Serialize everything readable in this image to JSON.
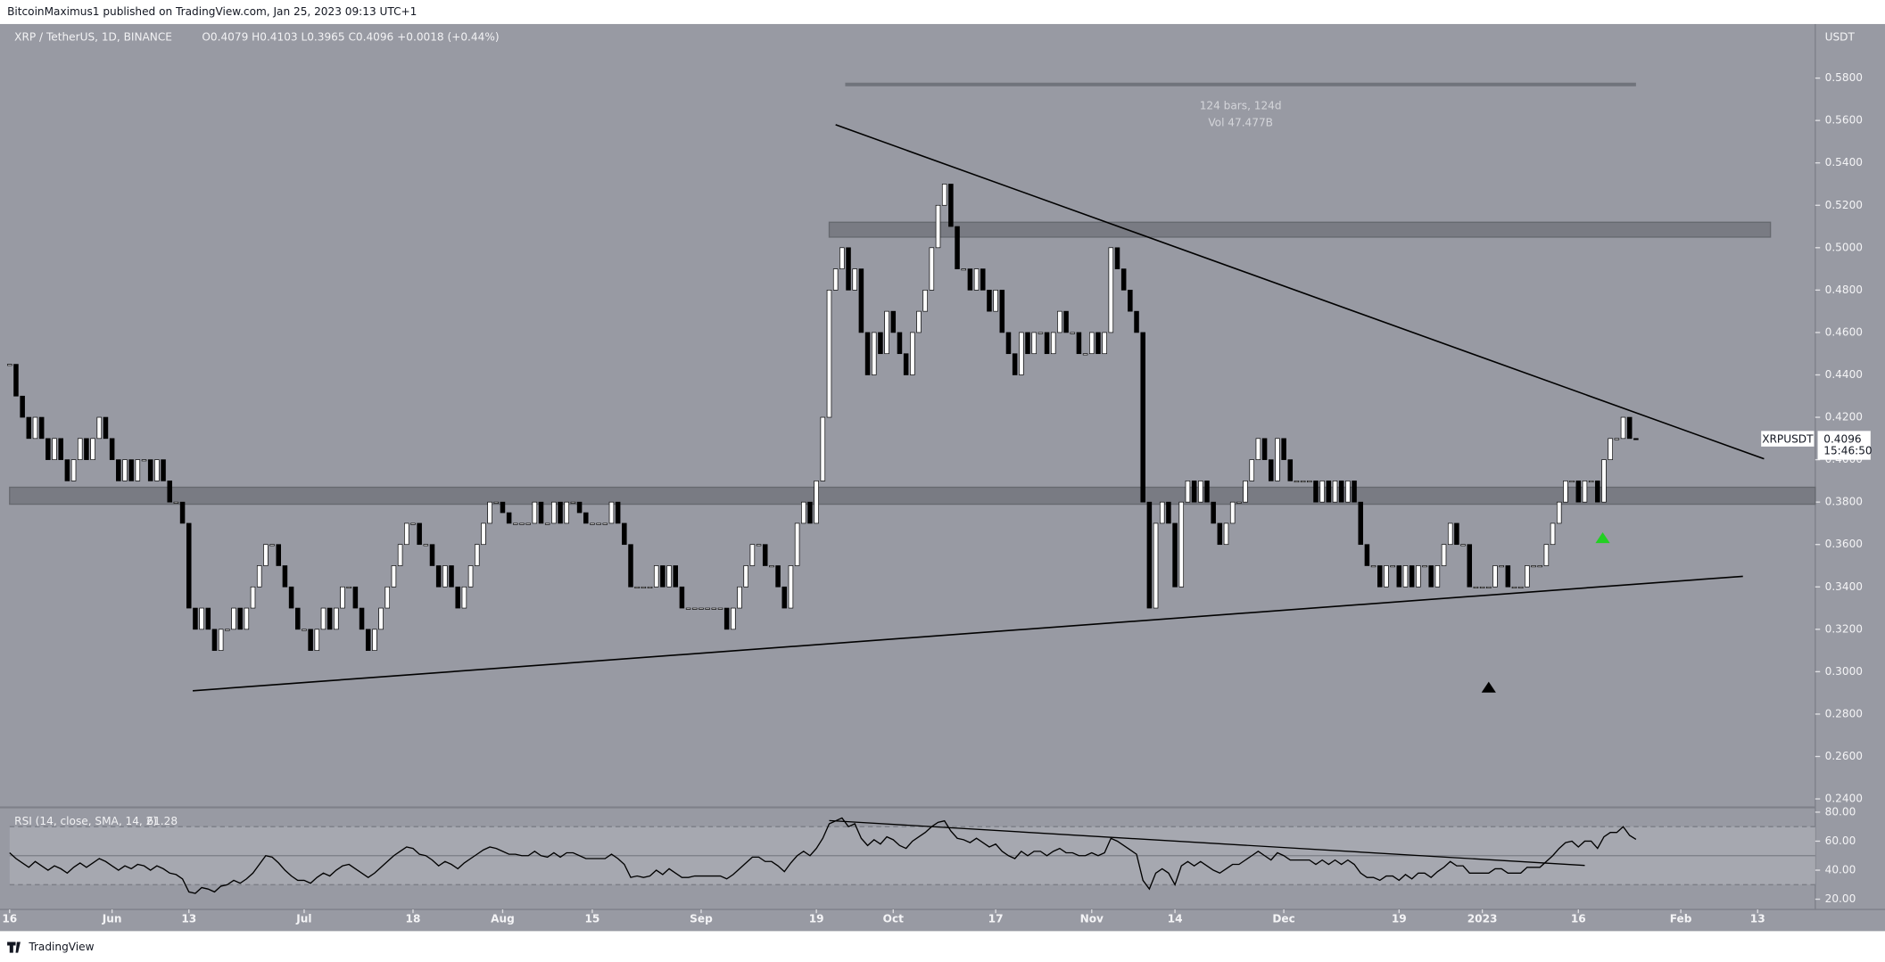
{
  "header": {
    "publisher": "BitcoinMaximus1 published on TradingView.com, Jan 25, 2023 09:13 UTC+1"
  },
  "footer": {
    "brand": "TradingView"
  },
  "chart_data": [
    {
      "type": "candlestick",
      "title": "XRP / TetherUS, 1D, BINANCE",
      "ohlc_text": "O0.4079 H0.4103 L0.3965 C0.4096 +0.0018 (+0.44%)",
      "y_unit": "USDT",
      "symbol_label": "XRPUSDT",
      "last_price_label": "0.4096",
      "countdown": "15:46:50",
      "up_color": "#ffffff",
      "down_color": "#000000",
      "xlim": [
        0,
        282
      ],
      "xticks": [
        {
          "value": 0,
          "label": "16"
        },
        {
          "value": 16,
          "label": "Jun"
        },
        {
          "value": 28,
          "label": "13"
        },
        {
          "value": 46,
          "label": "Jul"
        },
        {
          "value": 63,
          "label": "18"
        },
        {
          "value": 77,
          "label": "Aug"
        },
        {
          "value": 91,
          "label": "15"
        },
        {
          "value": 108,
          "label": "Sep"
        },
        {
          "value": 126,
          "label": "19"
        },
        {
          "value": 138,
          "label": "Oct"
        },
        {
          "value": 154,
          "label": "17"
        },
        {
          "value": 169,
          "label": "Nov"
        },
        {
          "value": 182,
          "label": "14"
        },
        {
          "value": 199,
          "label": "Dec"
        },
        {
          "value": 217,
          "label": "19"
        },
        {
          "value": 230,
          "label": "2023"
        },
        {
          "value": 245,
          "label": "16"
        },
        {
          "value": 261,
          "label": "Feb"
        },
        {
          "value": 273,
          "label": "13"
        }
      ],
      "ylim": [
        0.236,
        0.6055
      ],
      "yticks": [
        {
          "value": 0.24,
          "label": "0.2400"
        },
        {
          "value": 0.26,
          "label": "0.2600"
        },
        {
          "value": 0.28,
          "label": "0.2800"
        },
        {
          "value": 0.3,
          "label": "0.3000"
        },
        {
          "value": 0.32,
          "label": "0.3200"
        },
        {
          "value": 0.34,
          "label": "0.3400"
        },
        {
          "value": 0.36,
          "label": "0.3600"
        },
        {
          "value": 0.38,
          "label": "0.3800"
        },
        {
          "value": 0.4,
          "label": "0.4000"
        },
        {
          "value": 0.42,
          "label": "0.4200"
        },
        {
          "value": 0.44,
          "label": "0.4400"
        },
        {
          "value": 0.46,
          "label": "0.4600"
        },
        {
          "value": 0.48,
          "label": "0.4800"
        },
        {
          "value": 0.5,
          "label": "0.5000"
        },
        {
          "value": 0.52,
          "label": "0.5200"
        },
        {
          "value": 0.54,
          "label": "0.5400"
        },
        {
          "value": 0.56,
          "label": "0.5600"
        },
        {
          "value": 0.58,
          "label": "0.5800"
        }
      ],
      "values": [
        0.445,
        0.43,
        0.42,
        0.41,
        0.42,
        0.41,
        0.4,
        0.41,
        0.4,
        0.39,
        0.4,
        0.41,
        0.4,
        0.41,
        0.42,
        0.41,
        0.4,
        0.39,
        0.4,
        0.39,
        0.4,
        0.4,
        0.39,
        0.4,
        0.39,
        0.38,
        0.38,
        0.37,
        0.33,
        0.32,
        0.33,
        0.32,
        0.31,
        0.32,
        0.32,
        0.33,
        0.32,
        0.33,
        0.34,
        0.35,
        0.36,
        0.36,
        0.35,
        0.34,
        0.33,
        0.32,
        0.32,
        0.31,
        0.32,
        0.33,
        0.32,
        0.33,
        0.34,
        0.34,
        0.33,
        0.32,
        0.31,
        0.32,
        0.33,
        0.34,
        0.35,
        0.36,
        0.37,
        0.37,
        0.36,
        0.36,
        0.35,
        0.34,
        0.35,
        0.34,
        0.33,
        0.34,
        0.35,
        0.36,
        0.37,
        0.38,
        0.38,
        0.375,
        0.37,
        0.37,
        0.37,
        0.37,
        0.38,
        0.37,
        0.37,
        0.38,
        0.37,
        0.38,
        0.38,
        0.375,
        0.37,
        0.37,
        0.37,
        0.37,
        0.38,
        0.37,
        0.36,
        0.34,
        0.34,
        0.34,
        0.34,
        0.35,
        0.34,
        0.35,
        0.34,
        0.33,
        0.33,
        0.33,
        0.33,
        0.33,
        0.33,
        0.33,
        0.32,
        0.33,
        0.34,
        0.35,
        0.36,
        0.36,
        0.35,
        0.35,
        0.34,
        0.33,
        0.35,
        0.37,
        0.38,
        0.37,
        0.39,
        0.42,
        0.48,
        0.49,
        0.5,
        0.48,
        0.49,
        0.46,
        0.44,
        0.46,
        0.45,
        0.47,
        0.46,
        0.45,
        0.44,
        0.46,
        0.47,
        0.48,
        0.5,
        0.52,
        0.53,
        0.51,
        0.49,
        0.49,
        0.48,
        0.49,
        0.48,
        0.47,
        0.48,
        0.46,
        0.45,
        0.44,
        0.46,
        0.45,
        0.46,
        0.46,
        0.45,
        0.46,
        0.47,
        0.46,
        0.46,
        0.45,
        0.45,
        0.46,
        0.45,
        0.46,
        0.5,
        0.49,
        0.48,
        0.47,
        0.46,
        0.38,
        0.33,
        0.37,
        0.38,
        0.37,
        0.34,
        0.38,
        0.39,
        0.38,
        0.39,
        0.38,
        0.37,
        0.36,
        0.37,
        0.38,
        0.38,
        0.39,
        0.4,
        0.41,
        0.4,
        0.39,
        0.41,
        0.4,
        0.39,
        0.39,
        0.39,
        0.39,
        0.38,
        0.39,
        0.38,
        0.39,
        0.38,
        0.39,
        0.38,
        0.36,
        0.35,
        0.35,
        0.34,
        0.35,
        0.35,
        0.34,
        0.35,
        0.34,
        0.35,
        0.35,
        0.34,
        0.35,
        0.36,
        0.37,
        0.36,
        0.36,
        0.34,
        0.34,
        0.34,
        0.34,
        0.35,
        0.35,
        0.34,
        0.34,
        0.34,
        0.35,
        0.35,
        0.35,
        0.36,
        0.37,
        0.38,
        0.39,
        0.39,
        0.38,
        0.39,
        0.39,
        0.38,
        0.4,
        0.41,
        0.41,
        0.42,
        0.41,
        0.4096
      ],
      "zones": [
        {
          "x": [
            128,
            275
          ],
          "y": [
            0.505,
            0.512
          ]
        },
        {
          "x": [
            0,
            282
          ],
          "y": [
            0.379,
            0.387
          ]
        }
      ],
      "trendlines": [
        {
          "x": [
            129,
            274
          ],
          "y": [
            0.558,
            0.4004
          ]
        },
        {
          "x": [
            28.6,
            270.7
          ],
          "y": [
            0.291,
            0.345
          ]
        }
      ],
      "measure": {
        "x": [
          130.5,
          254
        ],
        "y": 0.577,
        "lines": [
          "124 bars, 124d",
          "Vol 47.477B"
        ]
      },
      "markers": [
        {
          "x": 231,
          "y": 0.293,
          "color": "#000000"
        },
        {
          "x": 248.8,
          "y": 0.3635,
          "color": "#22d022"
        }
      ]
    },
    {
      "type": "line",
      "title": "RSI (14, close, SMA, 14, 2)",
      "value_text": "61.28",
      "color": "#000000",
      "xlim": [
        0,
        282
      ],
      "ylim": [
        12.9,
        83.3
      ],
      "yticks": [
        {
          "value": 20,
          "label": "20.00"
        },
        {
          "value": 40,
          "label": "40.00"
        },
        {
          "value": 60,
          "label": "60.00"
        },
        {
          "value": 80,
          "label": "80.00"
        }
      ],
      "levels": [
        30,
        50,
        70
      ],
      "trendline": {
        "x": [
          128,
          246
        ],
        "y": [
          74.2,
          43.3
        ]
      },
      "values": [
        52,
        48,
        45,
        42,
        46,
        43,
        40,
        43,
        41,
        38,
        42,
        45,
        42,
        45,
        48,
        46,
        43,
        40,
        43,
        41,
        44,
        43,
        40,
        43,
        41,
        38,
        37,
        34,
        25,
        24,
        28,
        27,
        25,
        29,
        30,
        33,
        31,
        34,
        38,
        44,
        50,
        49,
        45,
        40,
        36,
        33,
        33,
        31,
        35,
        38,
        36,
        40,
        43,
        44,
        41,
        38,
        35,
        38,
        42,
        46,
        50,
        53,
        56,
        55,
        51,
        50,
        47,
        43,
        46,
        44,
        41,
        45,
        48,
        51,
        54,
        56,
        55,
        53,
        51,
        51,
        50,
        50,
        53,
        50,
        49,
        52,
        49,
        52,
        52,
        50,
        48,
        48,
        48,
        48,
        51,
        48,
        44,
        35,
        36,
        35,
        36,
        40,
        37,
        41,
        38,
        35,
        35,
        36,
        36,
        36,
        36,
        36,
        34,
        37,
        41,
        45,
        49,
        49,
        46,
        46,
        43,
        39,
        45,
        50,
        53,
        50,
        55,
        62,
        72,
        74,
        76,
        70,
        72,
        62,
        57,
        61,
        58,
        63,
        61,
        57,
        55,
        60,
        63,
        66,
        70,
        73,
        74,
        67,
        62,
        61,
        59,
        62,
        59,
        56,
        58,
        53,
        50,
        48,
        53,
        50,
        53,
        53,
        50,
        53,
        55,
        52,
        52,
        50,
        50,
        52,
        50,
        52,
        62,
        60,
        57,
        54,
        51,
        33,
        27,
        38,
        41,
        38,
        30,
        43,
        46,
        43,
        46,
        43,
        40,
        38,
        41,
        44,
        44,
        47,
        50,
        53,
        50,
        47,
        52,
        50,
        47,
        47,
        47,
        47,
        44,
        47,
        44,
        47,
        44,
        47,
        44,
        38,
        35,
        35,
        33,
        36,
        36,
        33,
        37,
        34,
        38,
        38,
        35,
        39,
        42,
        46,
        43,
        43,
        38,
        38,
        38,
        38,
        41,
        41,
        38,
        38,
        38,
        42,
        42,
        42,
        46,
        50,
        55,
        59,
        60,
        56,
        60,
        60,
        55,
        63,
        66,
        66,
        70,
        64,
        61.28
      ]
    }
  ]
}
